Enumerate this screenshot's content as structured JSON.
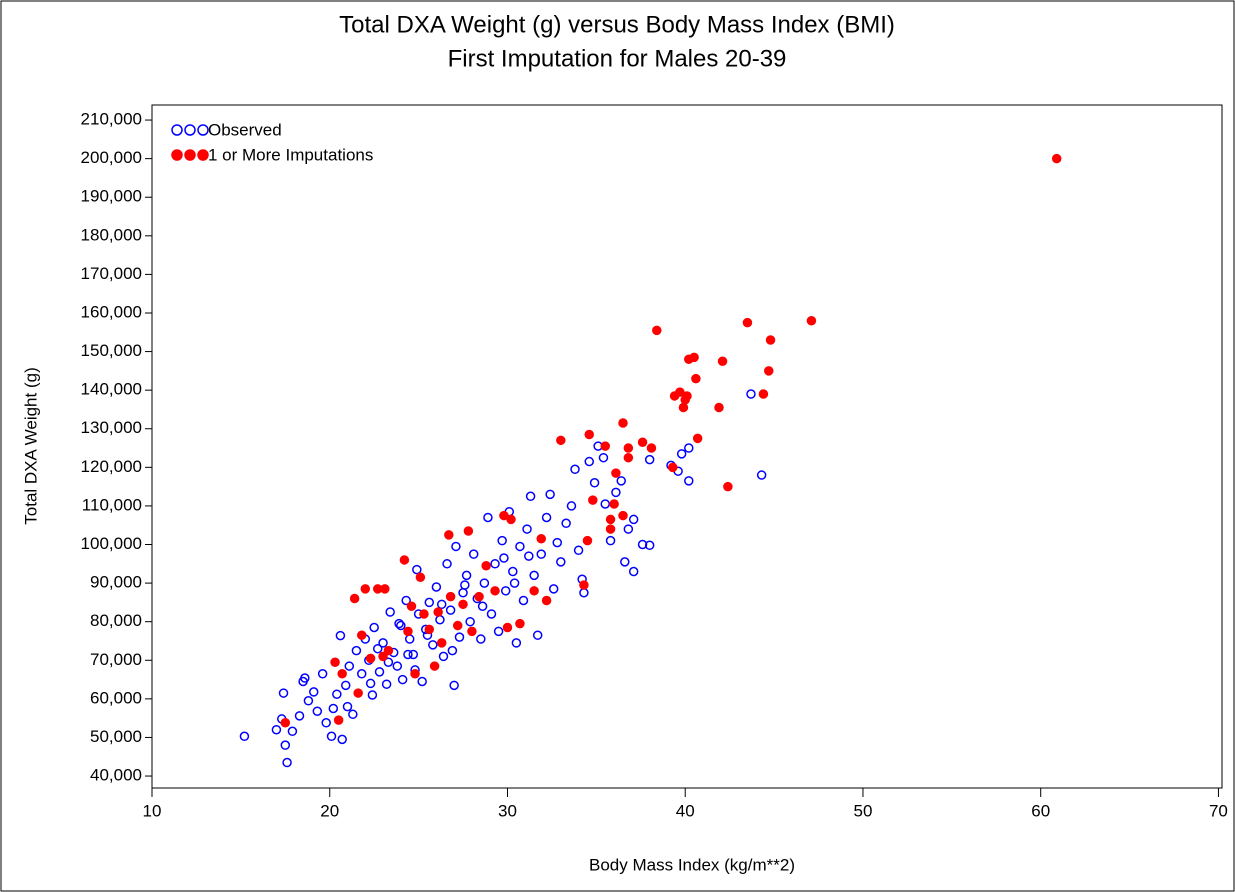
{
  "chart_data": {
    "type": "scatter",
    "title": "Total DXA Weight (g) versus Body Mass Index (BMI)",
    "subtitle": "First Imputation for Males 20-39",
    "x_label": "Body Mass Index (kg/m**2)",
    "y_label": "Total DXA Weight (g)",
    "legend": "top-left",
    "xlim": [
      10,
      70.2
    ],
    "ylim": [
      36900,
      213900
    ],
    "xticks": [
      10,
      20,
      30,
      40,
      50,
      60,
      70
    ],
    "yticks": [
      {
        "value": 40000,
        "label": "40,000"
      },
      {
        "value": 50000,
        "label": "50,000"
      },
      {
        "value": 60000,
        "label": "60,000"
      },
      {
        "value": 70000,
        "label": "70,000"
      },
      {
        "value": 80000,
        "label": "80,000"
      },
      {
        "value": 90000,
        "label": "90,000"
      },
      {
        "value": 100000,
        "label": "100,000"
      },
      {
        "value": 110000,
        "label": "110,000"
      },
      {
        "value": 120000,
        "label": "120,000"
      },
      {
        "value": 130000,
        "label": "130,000"
      },
      {
        "value": 140000,
        "label": "140,000"
      },
      {
        "value": 150000,
        "label": "150,000"
      },
      {
        "value": 160000,
        "label": "160,000"
      },
      {
        "value": 170000,
        "label": "170,000"
      },
      {
        "value": 180000,
        "label": "180,000"
      },
      {
        "value": 190000,
        "label": "190,000"
      },
      {
        "value": 200000,
        "label": "200,000"
      },
      {
        "value": 210000,
        "label": "210,000"
      }
    ],
    "series": [
      {
        "name": "Observed",
        "color": "#0000ff",
        "marker": "open",
        "x": [
          15.2,
          17,
          17.3,
          17.4,
          17.6,
          17.5,
          17.9,
          18.3,
          18.5,
          18.6,
          18.8,
          19.1,
          19.3,
          19.6,
          19.8,
          20.1,
          20.2,
          20.4,
          20.7,
          20.6,
          20.9,
          21.1,
          21.3,
          21.5,
          21.8,
          22.0,
          22.2,
          22.4,
          22.5,
          22.8,
          23.0,
          23.2,
          23.4,
          23.6,
          23.8,
          24.0,
          24.1,
          24.3,
          24.5,
          24.7,
          24.9,
          25.0,
          25.2,
          25.4,
          25.6,
          25.8,
          26.0,
          26.2,
          26.4,
          26.6,
          26.8,
          27.0,
          27.1,
          27.3,
          27.5,
          27.7,
          27.9,
          28.1,
          28.3,
          28.5,
          28.7,
          28.9,
          29.1,
          29.3,
          29.5,
          29.7,
          29.9,
          30.1,
          30.3,
          30.5,
          30.7,
          30.9,
          31.1,
          31.3,
          31.5,
          31.7,
          31.9,
          32.2,
          32.4,
          32.6,
          32.8,
          33.0,
          33.3,
          33.6,
          33.8,
          34.0,
          34.2,
          34.3,
          34.6,
          34.9,
          35.1,
          35.4,
          35.5,
          35.8,
          36.1,
          36.4,
          36.6,
          36.8,
          37.1,
          37.1,
          37.6,
          38.0,
          38.0,
          39.2,
          39.6,
          39.8,
          40.2,
          40.2,
          43.7,
          44.3,
          21.0,
          22.7,
          23.3,
          24.4,
          25.5,
          26.3,
          27.6,
          28.6,
          29.8,
          30.4,
          31.2,
          26.9,
          24.8,
          23.9,
          22.3
        ],
        "values": [
          50300,
          52000,
          54800,
          61500,
          43500,
          48000,
          51600,
          55600,
          64500,
          65400,
          59500,
          61800,
          56800,
          66500,
          53800,
          50300,
          57500,
          61200,
          49500,
          76400,
          63500,
          68500,
          56000,
          72500,
          66500,
          75500,
          70000,
          61000,
          78500,
          67000,
          74500,
          63800,
          82500,
          72000,
          68500,
          79000,
          65000,
          85500,
          75500,
          71500,
          93500,
          82000,
          64500,
          78000,
          85000,
          74000,
          89000,
          80500,
          71000,
          95000,
          83000,
          63500,
          99500,
          76000,
          87500,
          92000,
          80000,
          97500,
          86000,
          75500,
          90000,
          107000,
          82000,
          95000,
          77500,
          101000,
          88000,
          108500,
          93000,
          74500,
          99500,
          85500,
          104000,
          112500,
          92000,
          76500,
          97500,
          107000,
          113000,
          88500,
          100500,
          95500,
          105500,
          110000,
          119500,
          98500,
          91000,
          87500,
          121500,
          116000,
          125500,
          122500,
          110500,
          101000,
          113500,
          116500,
          95500,
          104000,
          93000,
          106500,
          100000,
          99800,
          122000,
          120500,
          119000,
          123500,
          125000,
          116500,
          139000,
          118000,
          58000,
          73000,
          69500,
          71500,
          76500,
          84500,
          89500,
          84000,
          96500,
          90000,
          97000,
          72500,
          67500,
          79500,
          64000
        ]
      },
      {
        "name": "1 or More Imputations",
        "color": "#ff0000",
        "marker": "filled",
        "x": [
          17.5,
          20.3,
          20.5,
          20.7,
          21.4,
          21.6,
          21.8,
          22.0,
          22.3,
          22.7,
          23.1,
          23.3,
          23.0,
          24.2,
          24.4,
          24.6,
          24.8,
          25.1,
          25.3,
          25.6,
          25.9,
          26.1,
          26.3,
          26.7,
          26.8,
          27.2,
          27.5,
          27.8,
          28.0,
          28.4,
          28.8,
          29.3,
          29.8,
          30.0,
          30.2,
          30.7,
          31.5,
          31.9,
          32.2,
          33.0,
          34.3,
          34.5,
          34.6,
          34.8,
          35.5,
          35.8,
          35.8,
          36.0,
          36.1,
          36.5,
          36.5,
          36.8,
          36.8,
          37.6,
          38.1,
          38.4,
          39.3,
          39.4,
          39.7,
          39.9,
          40.0,
          40.1,
          40.2,
          40.5,
          40.6,
          40.7,
          41.9,
          42.1,
          42.4,
          43.5,
          44.4,
          44.7,
          44.8,
          47.1,
          60.9
        ],
        "values": [
          53800,
          69500,
          54500,
          66500,
          86000,
          61500,
          76500,
          88500,
          70500,
          88500,
          88500,
          72500,
          71000,
          96000,
          77500,
          84000,
          66500,
          91500,
          82000,
          78000,
          68500,
          82500,
          74500,
          102500,
          86500,
          79000,
          84500,
          103500,
          77500,
          86500,
          94500,
          88000,
          107500,
          78500,
          106500,
          79500,
          88000,
          101500,
          85500,
          127000,
          89500,
          101000,
          128500,
          111500,
          125500,
          104000,
          106500,
          110500,
          118500,
          107500,
          131500,
          122500,
          125000,
          126500,
          125000,
          155500,
          120000,
          138500,
          139500,
          135500,
          137500,
          138500,
          148000,
          148500,
          143000,
          127500,
          135500,
          147500,
          115000,
          157500,
          139000,
          145000,
          153000,
          158000,
          200000
        ]
      }
    ]
  }
}
